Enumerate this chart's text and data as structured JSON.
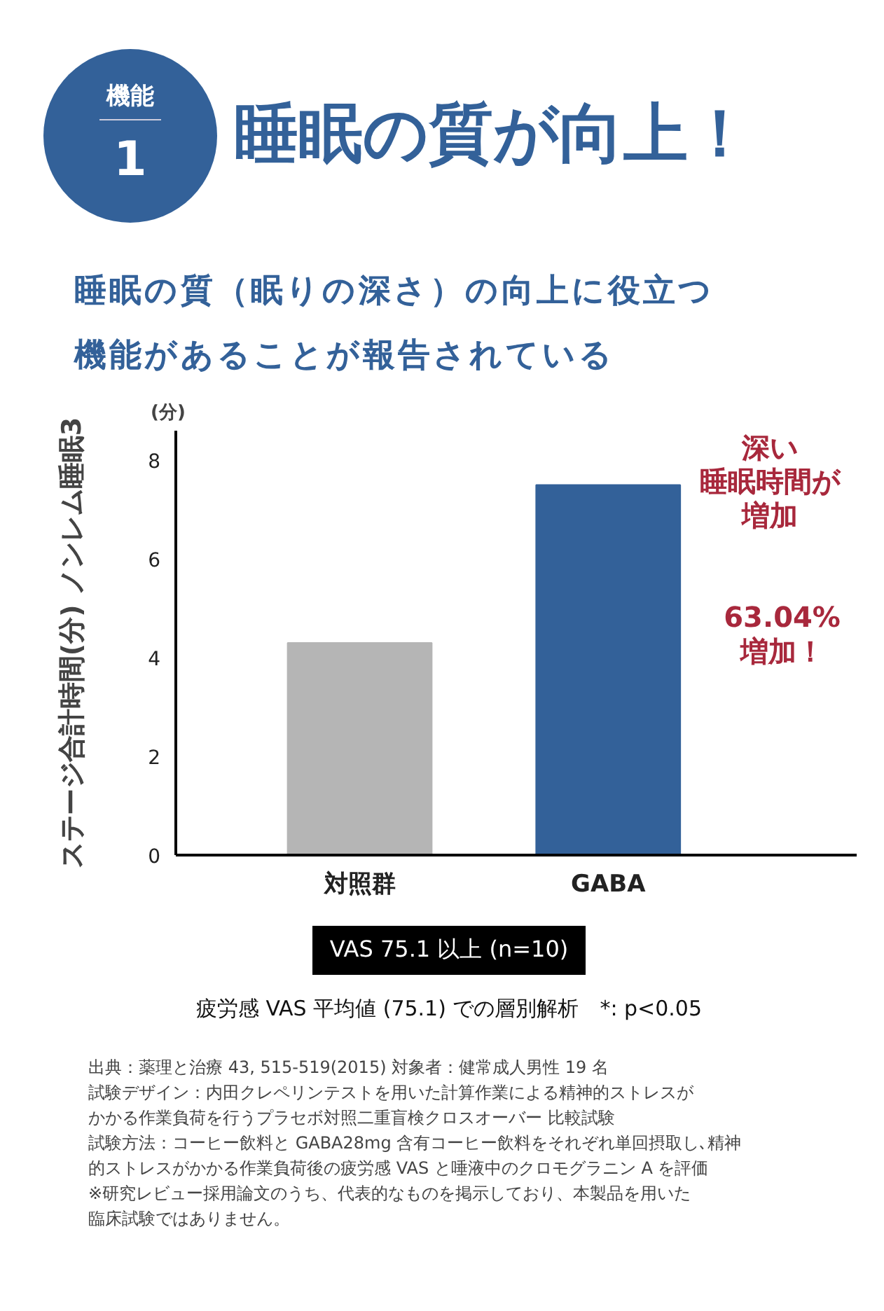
{
  "chart_data": {
    "type": "bar",
    "title": "睡眠の質が向上！",
    "subtitle": "睡眠の質（眠りの深さ）の向上に役立つ機能があることが報告されている",
    "ylabel": "ステージ合計時間(分) ノンレム睡眠3",
    "categories": [
      "対照群",
      "GABA"
    ],
    "values": [
      4.3,
      7.5
    ],
    "colors": [
      "#b5b5b5",
      "#336199"
    ],
    "ylim": [
      0,
      8.6
    ],
    "yticks": [
      0,
      2,
      4,
      6,
      8
    ],
    "grid": false,
    "annotations": [
      "機能\n1",
      "(分)",
      "深い",
      "睡眠時間が",
      "増加",
      "63.04%",
      "増加！",
      "VAS 75.1 以上 (n=10)",
      "疲労感 VAS 平均値 (75.1) での層別解析　*: p<0.05",
      "出典：薬理と治療 43, 515-519(2015) 対象者：健常成人男性 19 名",
      "試験デザイン：内田クレペリンテストを用いた計算作業による精神的ストレスが",
      "かかる作業負荷を行うプラセボ対照二重盲検クロスオーバー 比較試験",
      "試験方法：コーヒー飲料と GABA28mg 含有コーヒー飲料をそれぞれ単回摂取し､精神",
      "的ストレスがかかる作業負荷後の疲労感 VAS と唾液中のクロモグラニン A を評価",
      "※研究レビュー採用論文のうち、代表的なものを掲示しており、本製品を用いた",
      "臨床試験ではありません。"
    ]
  }
}
